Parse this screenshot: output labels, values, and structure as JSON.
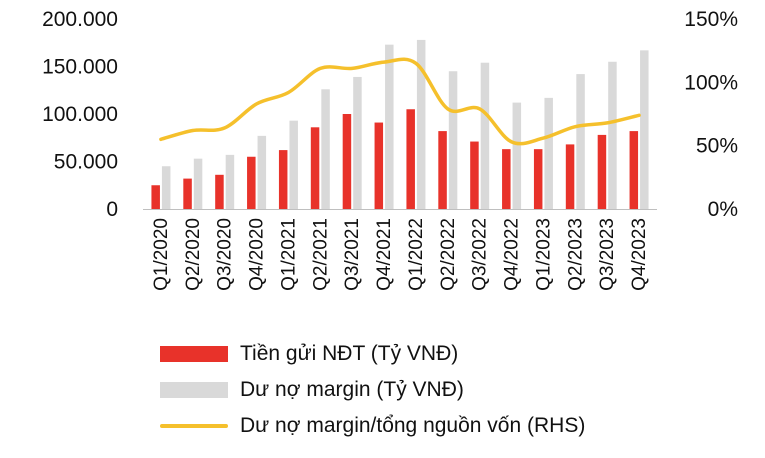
{
  "chart_data": {
    "type": "bar",
    "categories": [
      "Q1/2020",
      "Q2/2020",
      "Q3/2020",
      "Q4/2020",
      "Q1/2021",
      "Q2/2021",
      "Q3/2021",
      "Q4/2021",
      "Q1/2022",
      "Q2/2022",
      "Q3/2022",
      "Q4/2022",
      "Q1/2023",
      "Q2/2023",
      "Q3/2023",
      "Q4/2023"
    ],
    "series": [
      {
        "name": "Tiền gửi NĐT (Tỷ VNĐ)",
        "type": "bar",
        "axis": "left",
        "color": "#e8322a",
        "values": [
          25000,
          32000,
          36000,
          55000,
          62000,
          86000,
          100000,
          91000,
          105000,
          82000,
          71000,
          63000,
          63000,
          68000,
          78000,
          82000
        ]
      },
      {
        "name": "Dư nợ margin (Tỷ VNĐ)",
        "type": "bar",
        "axis": "left",
        "color": "#d9d9d9",
        "values": [
          45000,
          53000,
          57000,
          77000,
          93000,
          126000,
          139000,
          173000,
          178000,
          145000,
          154000,
          112000,
          117000,
          142000,
          155000,
          167000
        ]
      },
      {
        "name": "Dư nợ margin/tổng nguồn vốn (RHS)",
        "type": "line",
        "axis": "right",
        "color": "#f5c02c",
        "values": [
          55,
          62,
          64,
          83,
          92,
          111,
          111,
          116,
          115,
          79,
          79,
          53,
          56,
          65,
          68,
          74
        ]
      }
    ],
    "yticks_left": [
      "200.000",
      "150.000",
      "100.000",
      "50.000",
      "0"
    ],
    "yticks_right": [
      "150%",
      "100%",
      "50%",
      "0%"
    ],
    "ylim_left": [
      0,
      200000
    ],
    "ylim_right": [
      0,
      150
    ],
    "legend_position": "bottom"
  }
}
